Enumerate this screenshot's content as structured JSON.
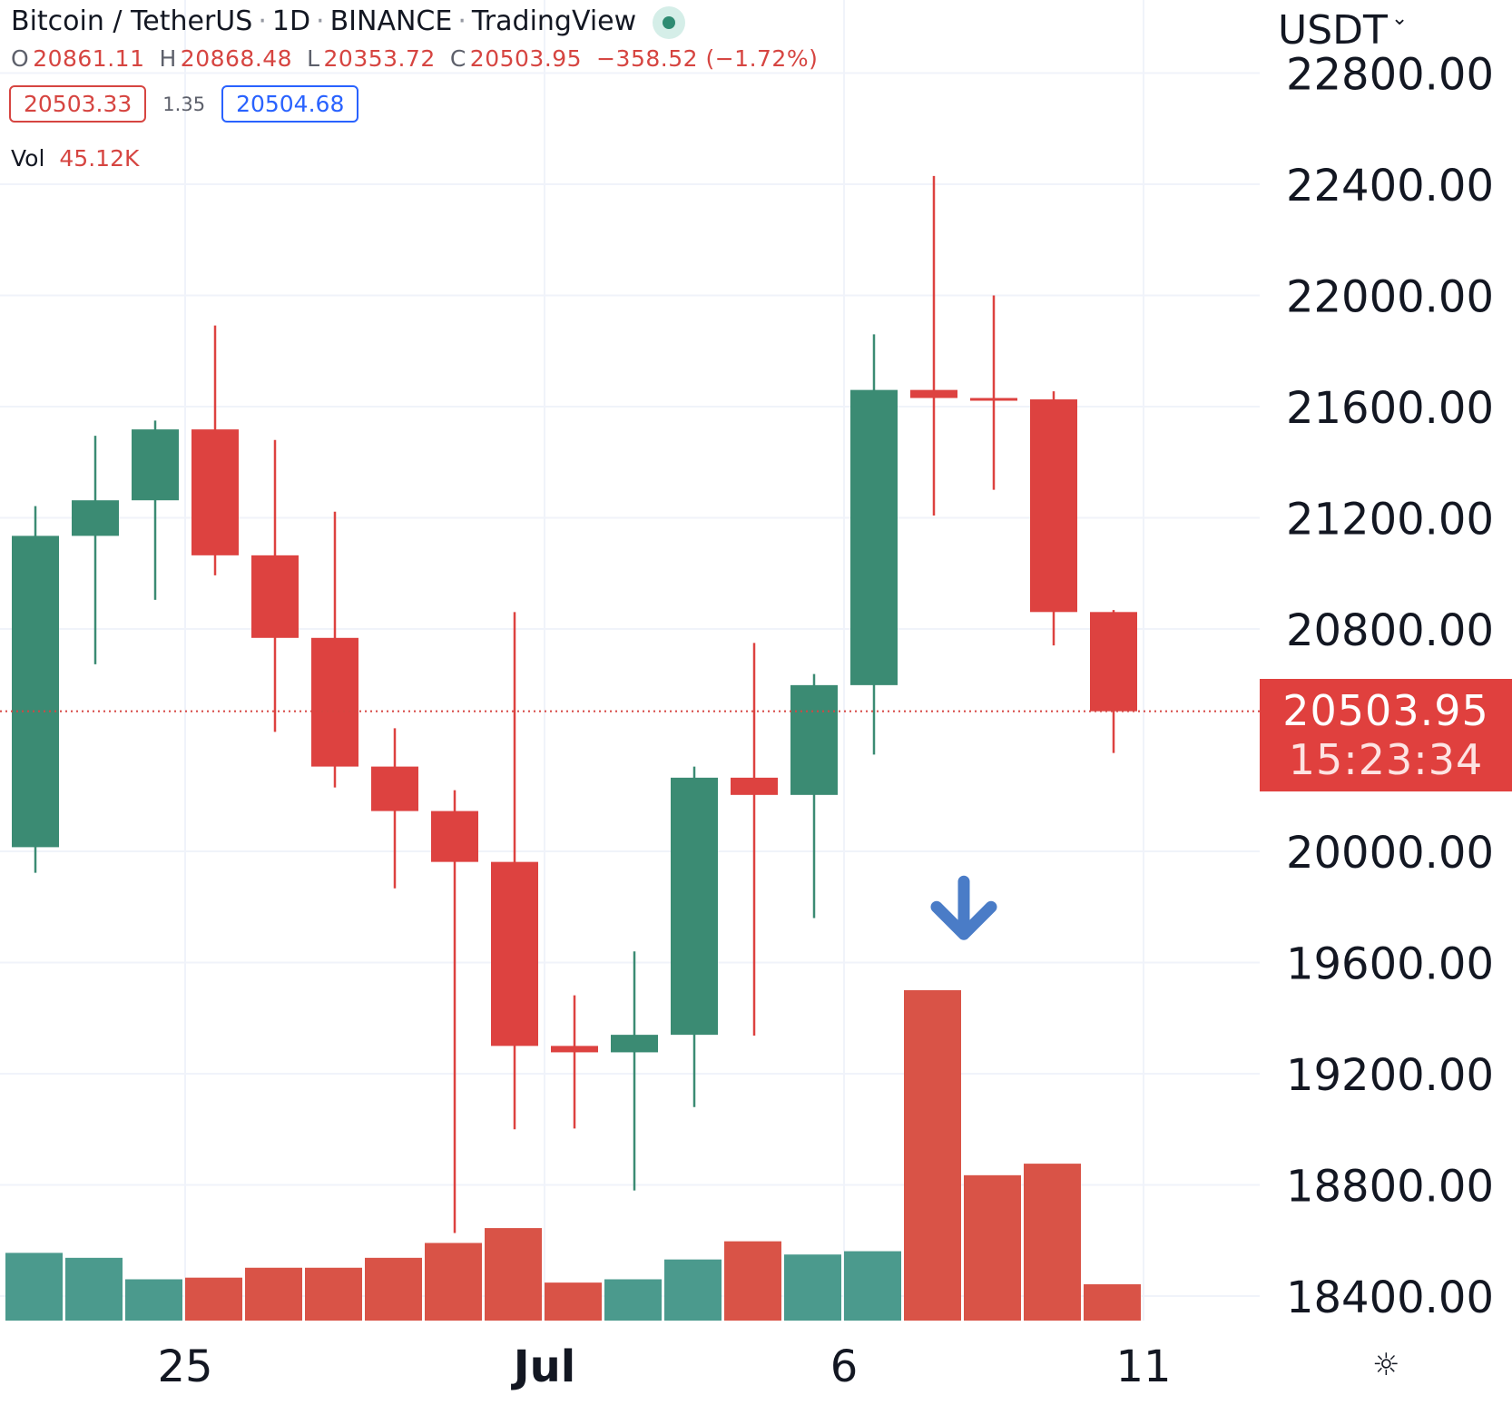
{
  "legend": {
    "symbol": "Bitcoin / TetherUS",
    "interval": "1D",
    "exchange": "BINANCE",
    "source": "TradingView",
    "separator": "·"
  },
  "ohlc": {
    "o_label": "O",
    "o": "20861.11",
    "h_label": "H",
    "h": "20868.48",
    "l_label": "L",
    "l": "20353.72",
    "c_label": "C",
    "c": "20503.95",
    "change": "−358.52 (−1.72%)"
  },
  "quote": {
    "bid": "20503.33",
    "spread": "1.35",
    "ask": "20504.68"
  },
  "volume": {
    "label": "Vol",
    "value": "45.12K"
  },
  "currency": {
    "label": "USDT",
    "chevron": "⌄"
  },
  "last_price": {
    "price": "20503.95",
    "countdown": "15:23:34"
  },
  "settings_icon": "☼",
  "colors": {
    "up": "#3b8b73",
    "down": "#dd4240",
    "vol_up": "#4b9a8d",
    "vol_down": "#d95347",
    "grid": "#f0f3fa",
    "arrow": "#4a7cc7",
    "last_line": "#d64541"
  },
  "chart_data": {
    "type": "candlestick",
    "y_ticks": [
      "22800.00",
      "22400.00",
      "22000.00",
      "21600.00",
      "21200.00",
      "20800.00",
      "20000.00",
      "19600.00",
      "19200.00",
      "18800.00",
      "18400.00"
    ],
    "y_tick_values": [
      22800,
      22400,
      22000,
      21600,
      21200,
      20800,
      20000,
      19600,
      19200,
      18800,
      18400
    ],
    "x_tick_labels": [
      {
        "text": "25",
        "index": 2.5,
        "bold": false
      },
      {
        "text": "Jul",
        "index": 8.5,
        "bold": true
      },
      {
        "text": "6",
        "index": 13.5,
        "bold": false
      },
      {
        "text": "11",
        "index": 18.5,
        "bold": false
      }
    ],
    "candles": [
      {
        "o": 20015,
        "h": 21242,
        "l": 19923,
        "c": 21135
      },
      {
        "o": 21135,
        "h": 21495,
        "l": 20673,
        "c": 21263
      },
      {
        "o": 21263,
        "h": 21550,
        "l": 20905,
        "c": 21518
      },
      {
        "o": 21518,
        "h": 21892,
        "l": 20993,
        "c": 21065
      },
      {
        "o": 21065,
        "h": 21480,
        "l": 20430,
        "c": 20768
      },
      {
        "o": 20768,
        "h": 21222,
        "l": 20230,
        "c": 20305
      },
      {
        "o": 20305,
        "h": 20443,
        "l": 19867,
        "c": 20145
      },
      {
        "o": 20145,
        "h": 20220,
        "l": 18627,
        "c": 19962
      },
      {
        "o": 19962,
        "h": 20861,
        "l": 19000,
        "c": 19300
      },
      {
        "o": 19300,
        "h": 19482,
        "l": 19003,
        "c": 19277
      },
      {
        "o": 19277,
        "h": 19640,
        "l": 18780,
        "c": 19340
      },
      {
        "o": 19340,
        "h": 20305,
        "l": 19080,
        "c": 20265
      },
      {
        "o": 20265,
        "h": 20750,
        "l": 19337,
        "c": 20203
      },
      {
        "o": 20203,
        "h": 20638,
        "l": 19760,
        "c": 20598
      },
      {
        "o": 20598,
        "h": 21860,
        "l": 20348,
        "c": 21660
      },
      {
        "o": 21660,
        "h": 22430,
        "l": 21208,
        "c": 21631
      },
      {
        "o": 21631,
        "h": 22000,
        "l": 21301,
        "c": 21626
      },
      {
        "o": 21626,
        "h": 21655,
        "l": 20741,
        "c": 20861
      },
      {
        "o": 20861,
        "h": 20868,
        "l": 20354,
        "c": 20504
      }
    ],
    "volume_relative": [
      {
        "v": 0.205,
        "up": true
      },
      {
        "v": 0.19,
        "up": true
      },
      {
        "v": 0.125,
        "up": true
      },
      {
        "v": 0.13,
        "up": false
      },
      {
        "v": 0.16,
        "up": false
      },
      {
        "v": 0.16,
        "up": false
      },
      {
        "v": 0.19,
        "up": false
      },
      {
        "v": 0.235,
        "up": false
      },
      {
        "v": 0.28,
        "up": false
      },
      {
        "v": 0.115,
        "up": false
      },
      {
        "v": 0.125,
        "up": true
      },
      {
        "v": 0.185,
        "up": true
      },
      {
        "v": 0.24,
        "up": false
      },
      {
        "v": 0.2,
        "up": true
      },
      {
        "v": 0.21,
        "up": true
      },
      {
        "v": 1.0,
        "up": false
      },
      {
        "v": 0.44,
        "up": false
      },
      {
        "v": 0.475,
        "up": false
      },
      {
        "v": 0.11,
        "up": false
      }
    ],
    "last_price_value": 20503.95,
    "signal_arrow": {
      "direction": "down",
      "index": 15.5,
      "price": 19800
    }
  }
}
